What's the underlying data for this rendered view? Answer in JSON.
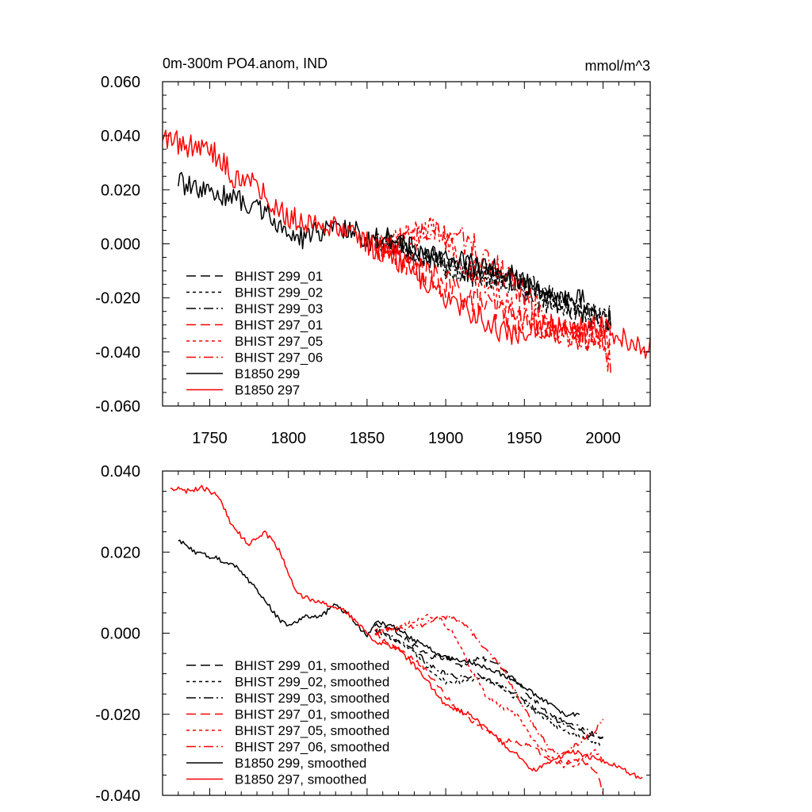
{
  "chart_data": [
    {
      "type": "line",
      "title": "0m-300m PO4.anom, IND",
      "units": "mmol/m^3",
      "xlabel": "",
      "ylabel": "",
      "xlim": [
        1720,
        2030
      ],
      "ylim": [
        -0.06,
        0.06
      ],
      "x_ticks": [
        1750,
        1800,
        1850,
        1900,
        1950,
        2000
      ],
      "x_tick_labels": [
        "1750",
        "1800",
        "1850",
        "1900",
        "1950",
        "2000"
      ],
      "y_ticks": [
        0.06,
        0.04,
        0.02,
        0.0,
        -0.02,
        -0.04,
        -0.06
      ],
      "y_tick_labels": [
        "0.060",
        "0.040",
        "0.020",
        "0.000",
        "-0.020",
        "-0.040",
        "-0.060"
      ],
      "legend_position": "bottom-left",
      "series": [
        {
          "name": "BHIST 299_01",
          "color": "#000000",
          "dash": "dash",
          "noise": 0.0045,
          "x": [
            1855,
            1870,
            1885,
            1900,
            1915,
            1930,
            1945,
            1960,
            1975,
            1990,
            2005
          ],
          "values": [
            0.002,
            0.0,
            -0.004,
            -0.007,
            -0.009,
            -0.011,
            -0.014,
            -0.017,
            -0.022,
            -0.026,
            -0.028
          ]
        },
        {
          "name": "BHIST 299_02",
          "color": "#000000",
          "dash": "short",
          "noise": 0.0045,
          "x": [
            1855,
            1870,
            1885,
            1900,
            1915,
            1930,
            1945,
            1960,
            1975,
            1990,
            2005
          ],
          "values": [
            0.001,
            -0.002,
            -0.005,
            -0.009,
            -0.012,
            -0.013,
            -0.015,
            -0.019,
            -0.023,
            -0.026,
            -0.029
          ]
        },
        {
          "name": "BHIST 299_03",
          "color": "#000000",
          "dash": "dashdot",
          "noise": 0.0045,
          "x": [
            1855,
            1870,
            1885,
            1900,
            1915,
            1930,
            1945,
            1960,
            1975,
            1990,
            2005
          ],
          "values": [
            0.001,
            -0.001,
            -0.003,
            -0.008,
            -0.011,
            -0.012,
            -0.016,
            -0.02,
            -0.024,
            -0.027,
            -0.027
          ]
        },
        {
          "name": "BHIST 297_01",
          "color": "#ff0000",
          "dash": "dash",
          "noise": 0.0055,
          "x": [
            1855,
            1870,
            1885,
            1900,
            1915,
            1930,
            1945,
            1960,
            1975,
            1990,
            2005
          ],
          "values": [
            0.0,
            -0.005,
            -0.01,
            -0.015,
            -0.02,
            -0.024,
            -0.028,
            -0.03,
            -0.033,
            -0.034,
            -0.038
          ]
        },
        {
          "name": "BHIST 297_05",
          "color": "#ff0000",
          "dash": "short",
          "noise": 0.0055,
          "x": [
            1855,
            1870,
            1880,
            1890,
            1900,
            1910,
            1925,
            1940,
            1955,
            1970,
            1985,
            2005
          ],
          "values": [
            0.001,
            0.001,
            0.004,
            0.005,
            0.002,
            -0.005,
            -0.014,
            -0.021,
            -0.028,
            -0.033,
            -0.035,
            -0.033
          ]
        },
        {
          "name": "BHIST 297_06",
          "color": "#ff0000",
          "dash": "dashdot",
          "noise": 0.0055,
          "x": [
            1855,
            1870,
            1885,
            1900,
            1915,
            1925,
            1940,
            1955,
            1970,
            1985,
            2000,
            2005
          ],
          "values": [
            0.0,
            0.001,
            0.002,
            0.004,
            0.001,
            -0.006,
            -0.012,
            -0.022,
            -0.031,
            -0.034,
            -0.035,
            -0.046
          ]
        },
        {
          "name": "B1850 299",
          "color": "#000000",
          "dash": "solid",
          "noise": 0.004,
          "x": [
            1730,
            1745,
            1760,
            1775,
            1790,
            1800,
            1810,
            1825,
            1840,
            1850,
            1860,
            1875,
            1890,
            1905,
            1920,
            1935,
            1950,
            1965,
            1988
          ],
          "values": [
            0.023,
            0.019,
            0.018,
            0.015,
            0.01,
            0.003,
            0.002,
            0.006,
            0.006,
            0.001,
            0.003,
            -0.001,
            -0.004,
            -0.006,
            -0.008,
            -0.01,
            -0.014,
            -0.019,
            -0.02
          ]
        },
        {
          "name": "B1850 297",
          "color": "#ff0000",
          "dash": "solid",
          "noise": 0.0045,
          "x": [
            1720,
            1735,
            1750,
            1765,
            1780,
            1790,
            1800,
            1815,
            1830,
            1845,
            1860,
            1875,
            1890,
            1905,
            1920,
            1935,
            1950,
            1965,
            1980,
            1995,
            2010,
            2030
          ],
          "values": [
            0.04,
            0.036,
            0.036,
            0.025,
            0.022,
            0.015,
            0.01,
            0.008,
            0.006,
            0.002,
            -0.004,
            -0.008,
            -0.015,
            -0.022,
            -0.027,
            -0.032,
            -0.035,
            -0.03,
            -0.031,
            -0.03,
            -0.034,
            -0.039
          ]
        }
      ]
    },
    {
      "type": "line",
      "title": "",
      "xlabel": "",
      "ylabel": "",
      "xlim": [
        1720,
        2030
      ],
      "ylim": [
        -0.04,
        0.04
      ],
      "x_ticks": [
        1750,
        1800,
        1850,
        1900,
        1950,
        2000
      ],
      "x_tick_labels": [],
      "y_ticks": [
        0.04,
        0.02,
        0.0,
        -0.02,
        -0.04
      ],
      "y_tick_labels": [
        "0.040",
        "0.020",
        "0.000",
        "-0.020",
        "-0.040"
      ],
      "legend_position": "bottom-left",
      "series": [
        {
          "name": "BHIST 299_01, smoothed",
          "color": "#000000",
          "dash": "dash",
          "noise": 0.0006,
          "x": [
            1855,
            1870,
            1880,
            1890,
            1900,
            1910,
            1920,
            1930,
            1945,
            1960,
            1975,
            1990,
            2000
          ],
          "values": [
            0.002,
            0.0,
            -0.003,
            -0.006,
            -0.006,
            -0.008,
            -0.006,
            -0.007,
            -0.012,
            -0.018,
            -0.022,
            -0.025,
            -0.026
          ]
        },
        {
          "name": "BHIST 299_02, smoothed",
          "color": "#000000",
          "dash": "short",
          "noise": 0.0006,
          "x": [
            1855,
            1870,
            1880,
            1890,
            1900,
            1910,
            1920,
            1930,
            1945,
            1960,
            1975,
            1990,
            2000
          ],
          "values": [
            0.001,
            -0.002,
            -0.005,
            -0.009,
            -0.012,
            -0.012,
            -0.011,
            -0.012,
            -0.016,
            -0.02,
            -0.024,
            -0.026,
            -0.028
          ]
        },
        {
          "name": "BHIST 299_03, smoothed",
          "color": "#000000",
          "dash": "dashdot",
          "noise": 0.0006,
          "x": [
            1855,
            1870,
            1880,
            1890,
            1900,
            1910,
            1920,
            1930,
            1945,
            1960,
            1975,
            1990,
            2000
          ],
          "values": [
            0.001,
            -0.002,
            -0.004,
            -0.008,
            -0.01,
            -0.011,
            -0.01,
            -0.012,
            -0.015,
            -0.02,
            -0.022,
            -0.024,
            -0.026
          ]
        },
        {
          "name": "BHIST 297_01, smoothed",
          "color": "#ff0000",
          "dash": "dash",
          "noise": 0.0006,
          "x": [
            1855,
            1870,
            1885,
            1895,
            1905,
            1915,
            1925,
            1935,
            1945,
            1955,
            1965,
            1975,
            1985,
            1995,
            2000
          ],
          "values": [
            0.0,
            -0.004,
            -0.008,
            -0.013,
            -0.018,
            -0.021,
            -0.024,
            -0.026,
            -0.027,
            -0.028,
            -0.031,
            -0.032,
            -0.031,
            -0.034,
            -0.039
          ]
        },
        {
          "name": "BHIST 297_05, smoothed",
          "color": "#ff0000",
          "dash": "short",
          "noise": 0.0006,
          "x": [
            1855,
            1865,
            1875,
            1885,
            1895,
            1905,
            1915,
            1925,
            1935,
            1945,
            1955,
            1965,
            1975,
            1985,
            1995,
            2000
          ],
          "values": [
            0.001,
            0.001,
            0.002,
            0.004,
            0.004,
            0.0,
            -0.008,
            -0.015,
            -0.018,
            -0.02,
            -0.026,
            -0.03,
            -0.033,
            -0.032,
            -0.029,
            -0.031
          ]
        },
        {
          "name": "BHIST 297_06, smoothed",
          "color": "#ff0000",
          "dash": "dashdot",
          "noise": 0.0006,
          "x": [
            1855,
            1870,
            1885,
            1895,
            1905,
            1915,
            1925,
            1935,
            1945,
            1955,
            1965,
            1975,
            1985,
            1995,
            2000
          ],
          "values": [
            0.0,
            0.001,
            0.002,
            0.004,
            0.004,
            0.001,
            -0.004,
            -0.008,
            -0.015,
            -0.022,
            -0.028,
            -0.03,
            -0.027,
            -0.024,
            -0.021
          ]
        },
        {
          "name": "B1850 299, smoothed",
          "color": "#000000",
          "dash": "solid",
          "noise": 0.0006,
          "x": [
            1730,
            1740,
            1750,
            1765,
            1775,
            1785,
            1795,
            1800,
            1810,
            1820,
            1830,
            1840,
            1850,
            1855,
            1870,
            1885,
            1900,
            1915,
            1930,
            1945,
            1960,
            1975,
            1985
          ],
          "values": [
            0.023,
            0.02,
            0.019,
            0.017,
            0.013,
            0.008,
            0.003,
            0.002,
            0.004,
            0.004,
            0.007,
            0.004,
            -0.001,
            0.003,
            0.001,
            -0.003,
            -0.006,
            -0.007,
            -0.009,
            -0.012,
            -0.016,
            -0.02,
            -0.02
          ]
        },
        {
          "name": "B1850 297, smoothed",
          "color": "#ff0000",
          "dash": "solid",
          "noise": 0.0006,
          "x": [
            1725,
            1735,
            1745,
            1755,
            1765,
            1775,
            1785,
            1795,
            1805,
            1815,
            1825,
            1835,
            1845,
            1855,
            1870,
            1885,
            1900,
            1915,
            1930,
            1945,
            1955,
            1965,
            1980,
            1995,
            2010,
            2025
          ],
          "values": [
            0.036,
            0.035,
            0.036,
            0.034,
            0.026,
            0.022,
            0.025,
            0.02,
            0.01,
            0.008,
            0.007,
            0.006,
            0.002,
            -0.002,
            -0.004,
            -0.01,
            -0.018,
            -0.02,
            -0.025,
            -0.03,
            -0.034,
            -0.032,
            -0.029,
            -0.031,
            -0.033,
            -0.036
          ]
        }
      ]
    }
  ]
}
